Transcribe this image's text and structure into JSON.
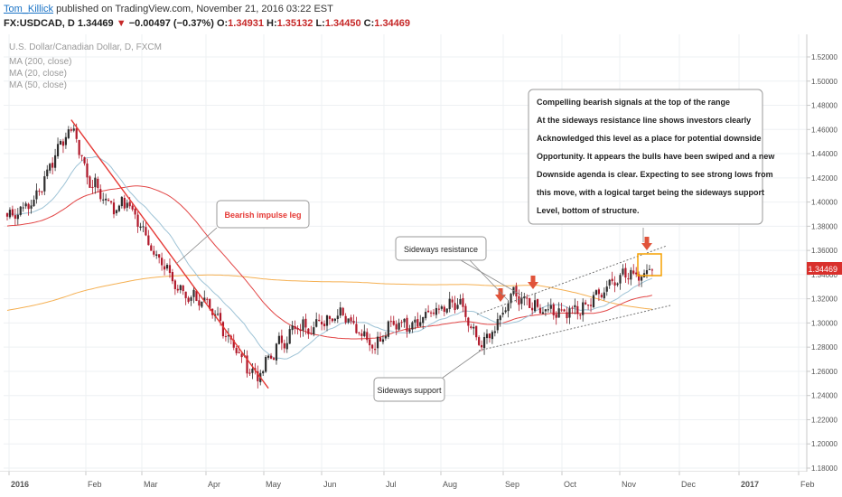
{
  "header": {
    "author": "Tom_Killick",
    "published": "published on TradingView.com, November 21, 2016 03:22 EST",
    "symbol": "FX:USDCAD, D",
    "last": "1.34469",
    "change": "−0.00497 (−0.37%)",
    "o_label": "O:",
    "o": "1.34931",
    "h_label": "H:",
    "h": "1.35132",
    "l_label": "L:",
    "l": "1.34450",
    "c_label": "C:",
    "c": "1.34469"
  },
  "legend": {
    "title": "U.S. Dollar/Canadian Dollar, D, FXCM",
    "ma200": "MA (200, close)",
    "ma20": "MA (20, close)",
    "ma50": "MA (50, close)"
  },
  "annotations": {
    "bearish": "Bearish impulse leg",
    "resistance": "Sideways resistance",
    "support": "Sideways support",
    "note": [
      "Compelling bearish signals at the top of the range",
      "At the sideways resistance line shows investors clearly",
      "Acknowledged this level as a place for potential downside",
      "Opportunity. It appears the bulls have been swiped and a new",
      "Downside agenda is clear. Expecting to see strong lows from",
      "this move, with a logical target being the sideways support",
      "Level, bottom of structure."
    ]
  },
  "colors": {
    "up": "#2e2e2e",
    "down": "#b0182a",
    "ma20": "#9ec3d6",
    "ma50": "#e24545",
    "ma200": "#f5b052",
    "impulse": "#e53935",
    "arrow": "#e0533a",
    "box": "#f5a000",
    "price_tag": "#d9302c"
  },
  "chart_data": {
    "type": "candlestick",
    "symbol": "FX:USDCAD",
    "timeframe": "D",
    "x_ticks": [
      "2016",
      "Feb",
      "Mar",
      "Apr",
      "May",
      "Jun",
      "Jul",
      "Aug",
      "Sep",
      "Oct",
      "Nov",
      "Dec",
      "2017",
      "Feb"
    ],
    "y_ticks": [
      "1.52000",
      "1.50000",
      "1.48000",
      "1.46000",
      "1.44000",
      "1.42000",
      "1.40000",
      "1.38000",
      "1.36000",
      "1.34000",
      "1.32000",
      "1.30000",
      "1.28000",
      "1.26000",
      "1.24000",
      "1.22000",
      "1.20000",
      "1.18000"
    ],
    "ylim": [
      1.17,
      1.53
    ],
    "last_price": "1.34469",
    "anchors": [
      {
        "d": 0,
        "p": 1.388
      },
      {
        "d": 10,
        "p": 1.4
      },
      {
        "d": 20,
        "p": 1.45
      },
      {
        "d": 25,
        "p": 1.46
      },
      {
        "d": 30,
        "p": 1.42
      },
      {
        "d": 40,
        "p": 1.395
      },
      {
        "d": 45,
        "p": 1.4
      },
      {
        "d": 55,
        "p": 1.36
      },
      {
        "d": 65,
        "p": 1.325
      },
      {
        "d": 72,
        "p": 1.32
      },
      {
        "d": 80,
        "p": 1.3
      },
      {
        "d": 88,
        "p": 1.27
      },
      {
        "d": 94,
        "p": 1.255
      },
      {
        "d": 101,
        "p": 1.28
      },
      {
        "d": 108,
        "p": 1.295
      },
      {
        "d": 118,
        "p": 1.3
      },
      {
        "d": 125,
        "p": 1.31
      },
      {
        "d": 132,
        "p": 1.295
      },
      {
        "d": 138,
        "p": 1.28
      },
      {
        "d": 145,
        "p": 1.3
      },
      {
        "d": 152,
        "p": 1.3
      },
      {
        "d": 160,
        "p": 1.31
      },
      {
        "d": 170,
        "p": 1.315
      },
      {
        "d": 177,
        "p": 1.28
      },
      {
        "d": 183,
        "p": 1.295
      },
      {
        "d": 190,
        "p": 1.325
      },
      {
        "d": 196,
        "p": 1.315
      },
      {
        "d": 205,
        "p": 1.31
      },
      {
        "d": 215,
        "p": 1.31
      },
      {
        "d": 222,
        "p": 1.325
      },
      {
        "d": 230,
        "p": 1.34
      },
      {
        "d": 236,
        "p": 1.34
      },
      {
        "d": 242,
        "p": 1.3447
      }
    ]
  }
}
